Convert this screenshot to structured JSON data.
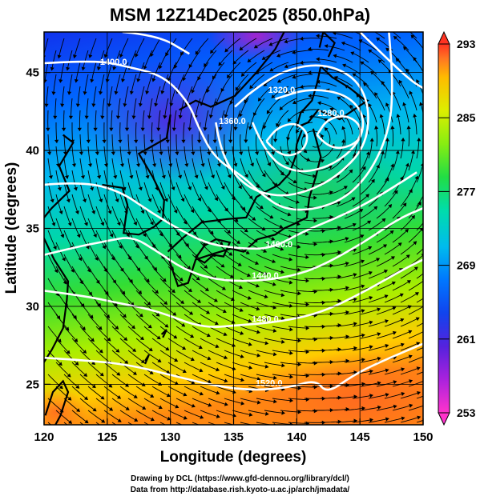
{
  "title": "MSM 12Z14Dec2025 (850.0hPa)",
  "credits": {
    "line1": "Drawing by DCL (https://www.gfd-dennou.org/library/dcl/)",
    "line2": "Data from http://database.rish.kyoto-u.ac.jp/arch/jmadata/"
  },
  "chart_data": {
    "type": "heatmap",
    "title": "MSM 12Z14Dec2025 (850.0hPa)",
    "xlabel": "Longitude (degrees)",
    "ylabel": "Latitude  (degrees)",
    "xlim": [
      120,
      150
    ],
    "ylim": [
      22.4,
      47.6
    ],
    "x_ticks": [
      120,
      125,
      130,
      135,
      140,
      145,
      150
    ],
    "y_ticks": [
      25,
      30,
      35,
      40,
      45
    ],
    "grid": true,
    "colorbar": {
      "ticks": [
        253,
        261,
        269,
        277,
        285,
        293
      ],
      "range": [
        253,
        293
      ],
      "colors": [
        "#ff33cc",
        "#aa22dd",
        "#5522dd",
        "#1144ee",
        "#0077ff",
        "#00bbee",
        "#00ddaa",
        "#22dd44",
        "#88ee11",
        "#ddee00",
        "#ffbb00",
        "#ff7722",
        "#ff3322"
      ]
    },
    "contour_labels": [
      {
        "text": "1400.0",
        "lon": 125.5,
        "lat": 45.5
      },
      {
        "text": "1360.0",
        "lon": 134.9,
        "lat": 41.7
      },
      {
        "text": "1320.0",
        "lon": 138.8,
        "lat": 43.7
      },
      {
        "text": "1280.0",
        "lon": 142.7,
        "lat": 42.2
      },
      {
        "text": "1400.0",
        "lon": 138.6,
        "lat": 33.8
      },
      {
        "text": "1440.0",
        "lon": 137.5,
        "lat": 31.8
      },
      {
        "text": "1480.0",
        "lon": 137.5,
        "lat": 29.0
      },
      {
        "text": "1520.0",
        "lon": 137.8,
        "lat": 24.9
      }
    ]
  }
}
